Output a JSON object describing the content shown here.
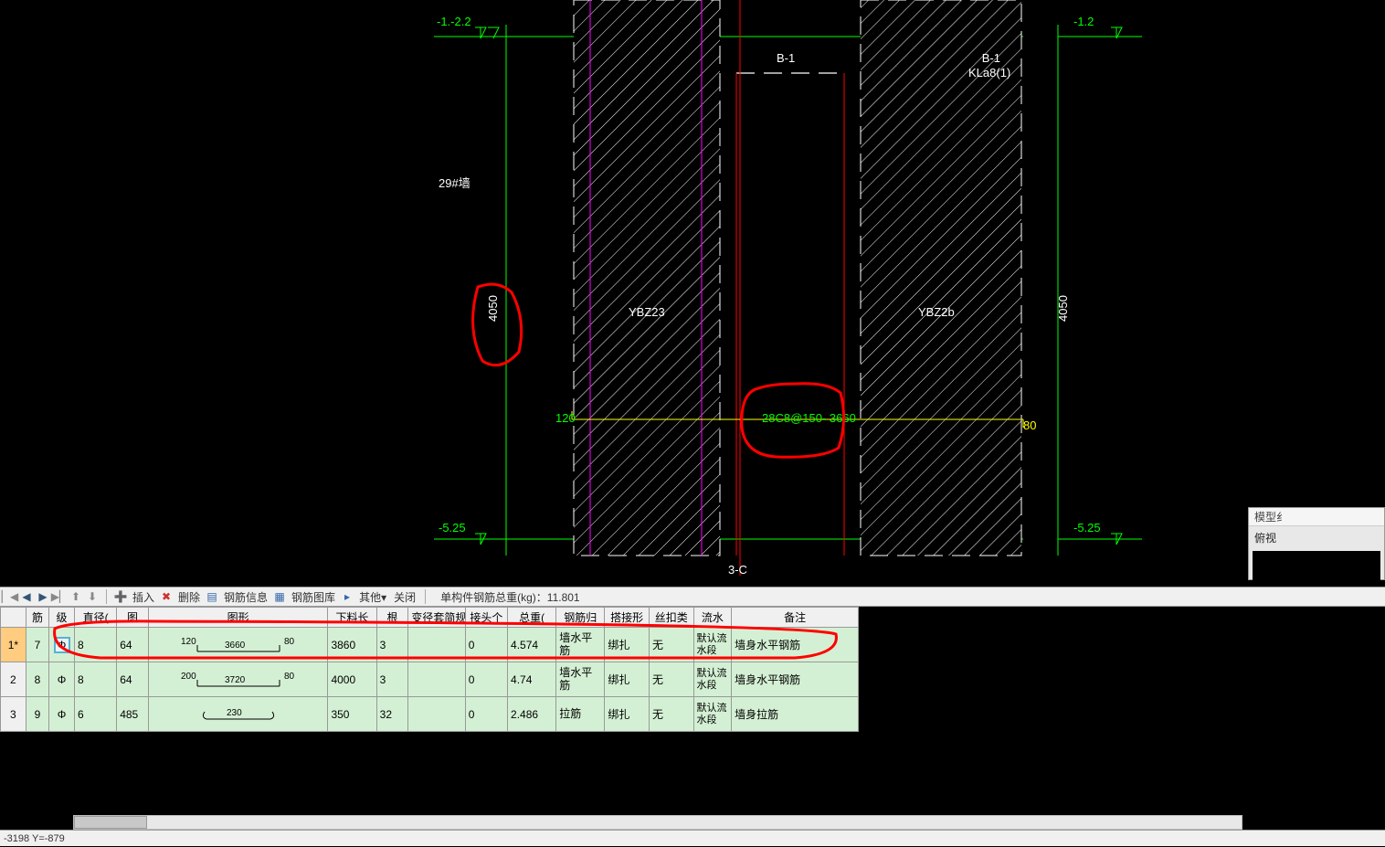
{
  "drawing": {
    "bg": "#000000",
    "labels": {
      "top_left_level": "-1.-2.2",
      "top_right_level": "-1.2",
      "bottom_left_level": "-5.25",
      "bottom_right_level": "-5.25",
      "wall_name": "29#墙",
      "height_left": "4050",
      "height_right": "4050",
      "ybz_left": "YBZ23",
      "ybz_right": "YBZ2b",
      "beam_label": "B-1",
      "beam_label_r": "B-1",
      "kl_label": "KLa8(1)",
      "rebar_green": "28C8@150- 3660",
      "dim_120": "120",
      "dim_80": "80",
      "axis_bottom": "3-C"
    },
    "colors": {
      "green": "#00ff00",
      "white": "#ffffff",
      "red": "#ff0000",
      "magenta": "#ff00ff",
      "yellow": "#ffff00",
      "cyan": "#00ffff",
      "annot_red": "#ff0000"
    }
  },
  "side_panel": {
    "hdr": "模型纟",
    "title": "俯视"
  },
  "toolbar": {
    "insert": "插入",
    "delete": "删除",
    "rebar_info": "钢筋信息",
    "rebar_lib": "钢筋图库",
    "other": "其他",
    "close": "关闭",
    "weight_label": "单构件钢筋总重(kg)：11.801"
  },
  "table": {
    "headers": [
      "",
      "筋",
      "级",
      "直径(",
      "图",
      "图形",
      "下料长",
      "根",
      "变径套简规",
      "接头个",
      "总重(",
      "钢筋归",
      "搭接形",
      "丝扣类",
      "流水",
      "备注"
    ],
    "rows": [
      {
        "idx": "1*",
        "jin": "7",
        "ji": "Φ",
        "dia": "8",
        "tu": "64",
        "shape_l": "120",
        "shape_m": "3660",
        "shape_r": "80",
        "xlc": "3860",
        "gen": "3",
        "bj": "",
        "jt": "0",
        "zz": "4.574",
        "gjg": "墙水平筋",
        "dj": "绑扎",
        "sk": "无",
        "ls": "默认流水段",
        "bz": "墙身水平钢筋",
        "sel": true
      },
      {
        "idx": "2",
        "jin": "8",
        "ji": "Φ",
        "dia": "8",
        "tu": "64",
        "shape_l": "200",
        "shape_m": "3720",
        "shape_r": "80",
        "xlc": "4000",
        "gen": "3",
        "bj": "",
        "jt": "0",
        "zz": "4.74",
        "gjg": "墙水平筋",
        "dj": "绑扎",
        "sk": "无",
        "ls": "默认流水段",
        "bz": "墙身水平钢筋",
        "sel": false
      },
      {
        "idx": "3",
        "jin": "9",
        "ji": "Φ",
        "dia": "6",
        "tu": "485",
        "shape_l": "",
        "shape_m": "230",
        "shape_r": "",
        "xlc": "350",
        "gen": "32",
        "bj": "",
        "jt": "0",
        "zz": "2.486",
        "gjg": "拉筋",
        "dj": "绑扎",
        "sk": "无",
        "ls": "默认流水段",
        "bz": "墙身拉筋",
        "sel": false
      }
    ]
  },
  "status": {
    "coords": "-3198 Y=-879"
  }
}
